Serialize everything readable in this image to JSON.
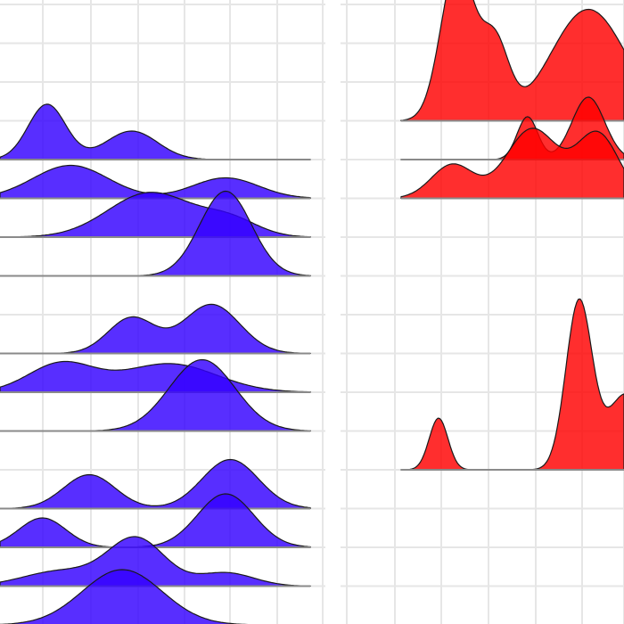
{
  "figure": {
    "panel_colors": {
      "left": "#3300ff",
      "right": "#ff0000"
    },
    "fill_opacity": 0.82
  },
  "chart_data": [
    {
      "type": "area",
      "chart_kind": "ridgeline density",
      "panel": "left",
      "grid": true,
      "legend": "none",
      "title": "",
      "xlabel": "",
      "ylabel": "",
      "series": [
        {
          "row": 4,
          "peaks": [
            {
              "x": 1.0,
              "h": 62,
              "w": 0.4
            },
            {
              "x": 2.8,
              "h": 32,
              "w": 0.55
            }
          ]
        },
        {
          "row": 5,
          "peaks": [
            {
              "x": 1.5,
              "h": 37,
              "w": 0.8
            },
            {
              "x": 4.8,
              "h": 23,
              "w": 0.7
            }
          ]
        },
        {
          "row": 6,
          "peaks": [
            {
              "x": 3.2,
              "h": 50,
              "w": 0.9
            },
            {
              "x": 4.9,
              "h": 18,
              "w": 0.6
            }
          ]
        },
        {
          "row": 7,
          "peaks": [
            {
              "x": 4.8,
              "h": 95,
              "w": 0.55
            }
          ]
        },
        {
          "row": 9,
          "peaks": [
            {
              "x": 2.8,
              "h": 40,
              "w": 0.5
            },
            {
              "x": 4.5,
              "h": 55,
              "w": 0.6
            }
          ]
        },
        {
          "row": 10,
          "peaks": [
            {
              "x": 1.3,
              "h": 32,
              "w": 0.7
            },
            {
              "x": 3.6,
              "h": 32,
              "w": 1.0
            }
          ]
        },
        {
          "row": 11,
          "peaks": [
            {
              "x": 4.3,
              "h": 80,
              "w": 0.7
            }
          ]
        },
        {
          "row": 13,
          "peaks": [
            {
              "x": 1.9,
              "h": 38,
              "w": 0.55
            },
            {
              "x": 4.9,
              "h": 55,
              "w": 0.6
            }
          ]
        },
        {
          "row": 14,
          "peaks": [
            {
              "x": 0.9,
              "h": 33,
              "w": 0.5
            },
            {
              "x": 4.8,
              "h": 60,
              "w": 0.6
            }
          ]
        },
        {
          "row": 15,
          "peaks": [
            {
              "x": 1.3,
              "h": 17,
              "w": 0.8
            },
            {
              "x": 2.9,
              "h": 53,
              "w": 0.6
            },
            {
              "x": 4.8,
              "h": 15,
              "w": 0.6
            }
          ]
        },
        {
          "row": 16,
          "peaks": [
            {
              "x": 2.6,
              "h": 62,
              "w": 0.85
            }
          ]
        }
      ]
    },
    {
      "type": "area",
      "chart_kind": "ridgeline density",
      "panel": "right",
      "grid": true,
      "legend": "none",
      "title": "",
      "xlabel": "",
      "ylabel": "",
      "series": [
        {
          "row": 3,
          "peaks": [
            {
              "x": 1.2,
              "h": 175,
              "w": 0.35
            },
            {
              "x": 2.0,
              "h": 85,
              "w": 0.3
            },
            {
              "x": 4.0,
              "h": 125,
              "w": 0.8
            }
          ]
        },
        {
          "row": 4,
          "peaks": [
            {
              "x": 2.7,
              "h": 48,
              "w": 0.22
            },
            {
              "x": 4.0,
              "h": 70,
              "w": 0.35
            }
          ]
        },
        {
          "row": 5,
          "peaks": [
            {
              "x": 1.1,
              "h": 38,
              "w": 0.45
            },
            {
              "x": 2.8,
              "h": 78,
              "w": 0.55
            },
            {
              "x": 4.2,
              "h": 72,
              "w": 0.45
            }
          ]
        },
        {
          "row": 12,
          "peaks": [
            {
              "x": 0.8,
              "h": 58,
              "w": 0.2
            },
            {
              "x": 3.8,
              "h": 188,
              "w": 0.28
            },
            {
              "x": 4.8,
              "h": 85,
              "w": 0.4
            }
          ]
        }
      ]
    }
  ]
}
